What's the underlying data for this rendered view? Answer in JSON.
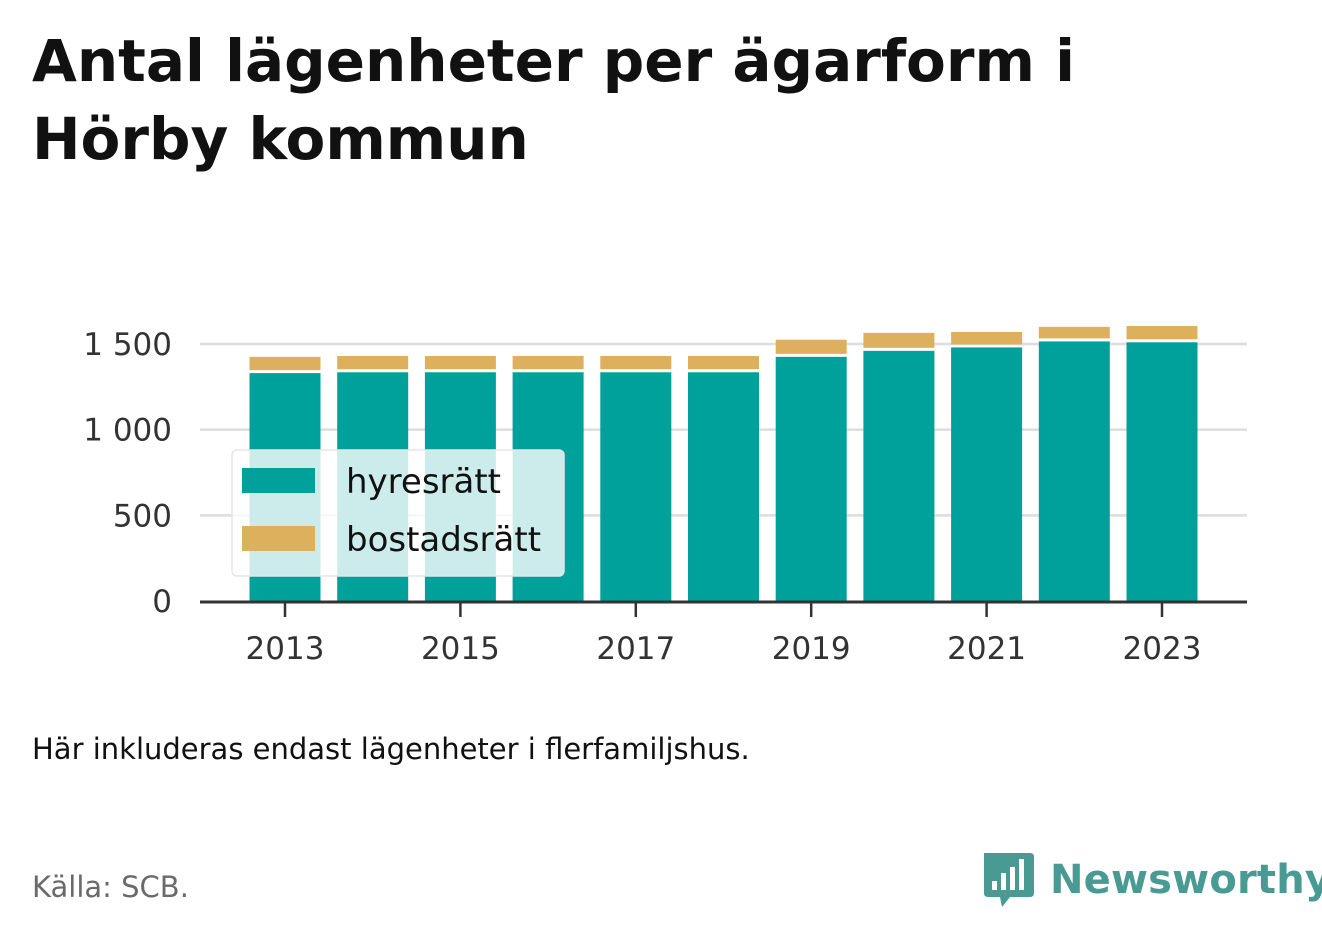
{
  "title": "Antal lägenheter per ägarform i Hörby kommun",
  "note": "Här inkluderas endast lägenheter i flerfamiljshus.",
  "source": "Källa: SCB.",
  "brand": {
    "name": "Newsworthy",
    "icon": "newsworthy-logo-icon",
    "color": "#4a9a94"
  },
  "chart_data": {
    "type": "bar",
    "stacked": true,
    "x": [
      2013,
      2014,
      2015,
      2016,
      2017,
      2018,
      2019,
      2020,
      2021,
      2022,
      2023
    ],
    "x_tick_labels": [
      "2013",
      "2015",
      "2017",
      "2019",
      "2021",
      "2023"
    ],
    "y_tick_values": [
      0,
      500,
      1000,
      1500
    ],
    "y_tick_labels": [
      "0",
      "500",
      "1 000",
      "1 500"
    ],
    "ylim": [
      0,
      1600
    ],
    "grid": true,
    "legend_position": "bottom-left",
    "series": [
      {
        "name": "hyresrätt",
        "color": "#00a19a",
        "values": [
          1330,
          1335,
          1335,
          1335,
          1335,
          1335,
          1425,
          1460,
          1480,
          1515,
          1510
        ]
      },
      {
        "name": "bostadsrätt",
        "color": "#dcb05c",
        "values": [
          95,
          95,
          95,
          95,
          95,
          95,
          100,
          105,
          90,
          85,
          95
        ]
      }
    ]
  }
}
